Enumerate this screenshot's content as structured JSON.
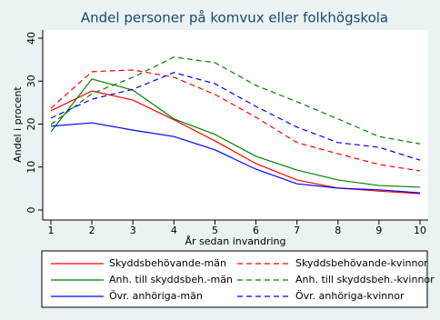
{
  "chart_data": {
    "type": "line",
    "title": "Andel personer på komvux eller folkhögskola",
    "x_label": "År sedan invandring",
    "y_label": "Andel i procent",
    "x": [
      1,
      2,
      3,
      4,
      5,
      6,
      7,
      8,
      9,
      10
    ],
    "xlim": [
      1,
      10
    ],
    "xticks": [
      1,
      2,
      3,
      4,
      5,
      6,
      7,
      8,
      9,
      10
    ],
    "ylim": [
      0,
      40
    ],
    "yticks": [
      0,
      10,
      20,
      30,
      40
    ],
    "series": [
      {
        "name": "Skyddsbehövande-män",
        "color": "#ff0000",
        "dashed": false,
        "values": [
          23.1,
          27.7,
          25.6,
          21.0,
          16.1,
          10.8,
          7.0,
          5.1,
          4.4,
          3.8
        ]
      },
      {
        "name": "Skyddsbehövande-kvinnor",
        "color": "#ff0000",
        "dashed": true,
        "values": [
          23.7,
          32.2,
          32.6,
          30.9,
          26.9,
          21.6,
          15.7,
          13.1,
          10.6,
          9.1
        ]
      },
      {
        "name": "Anh. till skyddsbeh.-män",
        "color": "#008000",
        "dashed": false,
        "values": [
          18.2,
          30.5,
          27.9,
          21.2,
          17.6,
          12.5,
          9.3,
          7.0,
          5.7,
          5.3
        ]
      },
      {
        "name": "Anh. till skyddsbeh.-kvinnor",
        "color": "#008000",
        "dashed": true,
        "values": [
          19.9,
          27.1,
          30.9,
          35.6,
          34.3,
          29.0,
          25.2,
          21.2,
          17.1,
          15.4
        ]
      },
      {
        "name": "Övr. anhöriga-män",
        "color": "#0000ff",
        "dashed": false,
        "values": [
          19.5,
          20.3,
          18.6,
          17.1,
          14.0,
          9.5,
          6.1,
          5.1,
          4.7,
          4.0
        ]
      },
      {
        "name": "Övr. anhöriga-kvinnor",
        "color": "#0000ff",
        "dashed": true,
        "values": [
          21.4,
          25.8,
          28.1,
          32.0,
          29.4,
          24.1,
          19.3,
          15.7,
          14.6,
          11.6
        ]
      }
    ]
  }
}
